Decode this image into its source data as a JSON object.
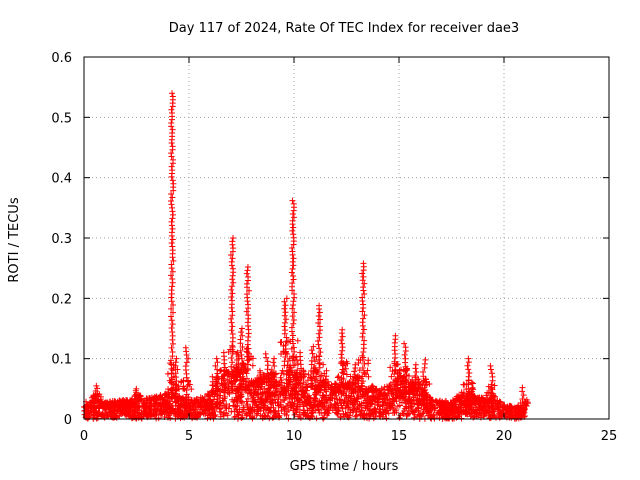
{
  "chart_data": {
    "type": "scatter",
    "title": "Day 117 of 2024, Rate Of TEC Index for receiver dae3",
    "xlabel": "GPS time / hours",
    "ylabel": "ROTI / TECUs",
    "xlim": [
      0,
      25
    ],
    "ylim": [
      0,
      0.6
    ],
    "x_ticks": [
      "0",
      "5",
      "10",
      "15",
      "20",
      "25"
    ],
    "y_ticks": [
      "0",
      "0.1",
      "0.2",
      "0.3",
      "0.4",
      "0.5",
      "0.6"
    ],
    "grid": true,
    "marker": "plus",
    "color": "#ff0000",
    "data_range_x": [
      0,
      21
    ],
    "baseline_envelope": [
      [
        0.0,
        0.028
      ],
      [
        0.5,
        0.032
      ],
      [
        1.0,
        0.03
      ],
      [
        1.5,
        0.03
      ],
      [
        2.0,
        0.032
      ],
      [
        2.5,
        0.033
      ],
      [
        3.0,
        0.035
      ],
      [
        3.5,
        0.038
      ],
      [
        4.0,
        0.045
      ],
      [
        4.5,
        0.04
      ],
      [
        5.0,
        0.03
      ],
      [
        5.5,
        0.035
      ],
      [
        6.0,
        0.045
      ],
      [
        6.5,
        0.06
      ],
      [
        7.0,
        0.07
      ],
      [
        7.5,
        0.07
      ],
      [
        8.0,
        0.065
      ],
      [
        8.5,
        0.06
      ],
      [
        9.0,
        0.06
      ],
      [
        9.5,
        0.08
      ],
      [
        10.0,
        0.08
      ],
      [
        10.5,
        0.06
      ],
      [
        11.0,
        0.055
      ],
      [
        11.5,
        0.055
      ],
      [
        12.0,
        0.06
      ],
      [
        12.5,
        0.06
      ],
      [
        13.0,
        0.06
      ],
      [
        13.5,
        0.05
      ],
      [
        14.0,
        0.045
      ],
      [
        14.5,
        0.06
      ],
      [
        15.0,
        0.07
      ],
      [
        15.5,
        0.06
      ],
      [
        16.0,
        0.055
      ],
      [
        16.5,
        0.035
      ],
      [
        17.0,
        0.03
      ],
      [
        17.5,
        0.03
      ],
      [
        18.0,
        0.045
      ],
      [
        18.5,
        0.04
      ],
      [
        19.0,
        0.035
      ],
      [
        19.5,
        0.035
      ],
      [
        20.0,
        0.025
      ],
      [
        20.5,
        0.02
      ],
      [
        21.0,
        0.018
      ]
    ],
    "spikes": [
      {
        "x": 0.6,
        "peak": 0.055
      },
      {
        "x": 2.5,
        "peak": 0.05
      },
      {
        "x": 4.2,
        "peak": 0.54
      },
      {
        "x": 4.4,
        "peak": 0.1
      },
      {
        "x": 4.9,
        "peak": 0.118
      },
      {
        "x": 6.3,
        "peak": 0.1
      },
      {
        "x": 6.7,
        "peak": 0.11
      },
      {
        "x": 7.05,
        "peak": 0.3
      },
      {
        "x": 7.3,
        "peak": 0.11
      },
      {
        "x": 7.5,
        "peak": 0.15
      },
      {
        "x": 7.8,
        "peak": 0.252
      },
      {
        "x": 8.4,
        "peak": 0.08
      },
      {
        "x": 8.7,
        "peak": 0.108
      },
      {
        "x": 9.0,
        "peak": 0.1
      },
      {
        "x": 9.6,
        "peak": 0.2
      },
      {
        "x": 9.95,
        "peak": 0.362
      },
      {
        "x": 10.3,
        "peak": 0.11
      },
      {
        "x": 10.9,
        "peak": 0.12
      },
      {
        "x": 11.2,
        "peak": 0.188
      },
      {
        "x": 11.5,
        "peak": 0.08
      },
      {
        "x": 12.3,
        "peak": 0.148
      },
      {
        "x": 12.9,
        "peak": 0.09
      },
      {
        "x": 13.3,
        "peak": 0.258
      },
      {
        "x": 13.7,
        "peak": 0.055
      },
      {
        "x": 14.8,
        "peak": 0.138
      },
      {
        "x": 15.3,
        "peak": 0.125
      },
      {
        "x": 15.8,
        "peak": 0.09
      },
      {
        "x": 16.2,
        "peak": 0.098
      },
      {
        "x": 18.3,
        "peak": 0.1
      },
      {
        "x": 19.4,
        "peak": 0.088
      },
      {
        "x": 20.9,
        "peak": 0.052
      }
    ]
  }
}
